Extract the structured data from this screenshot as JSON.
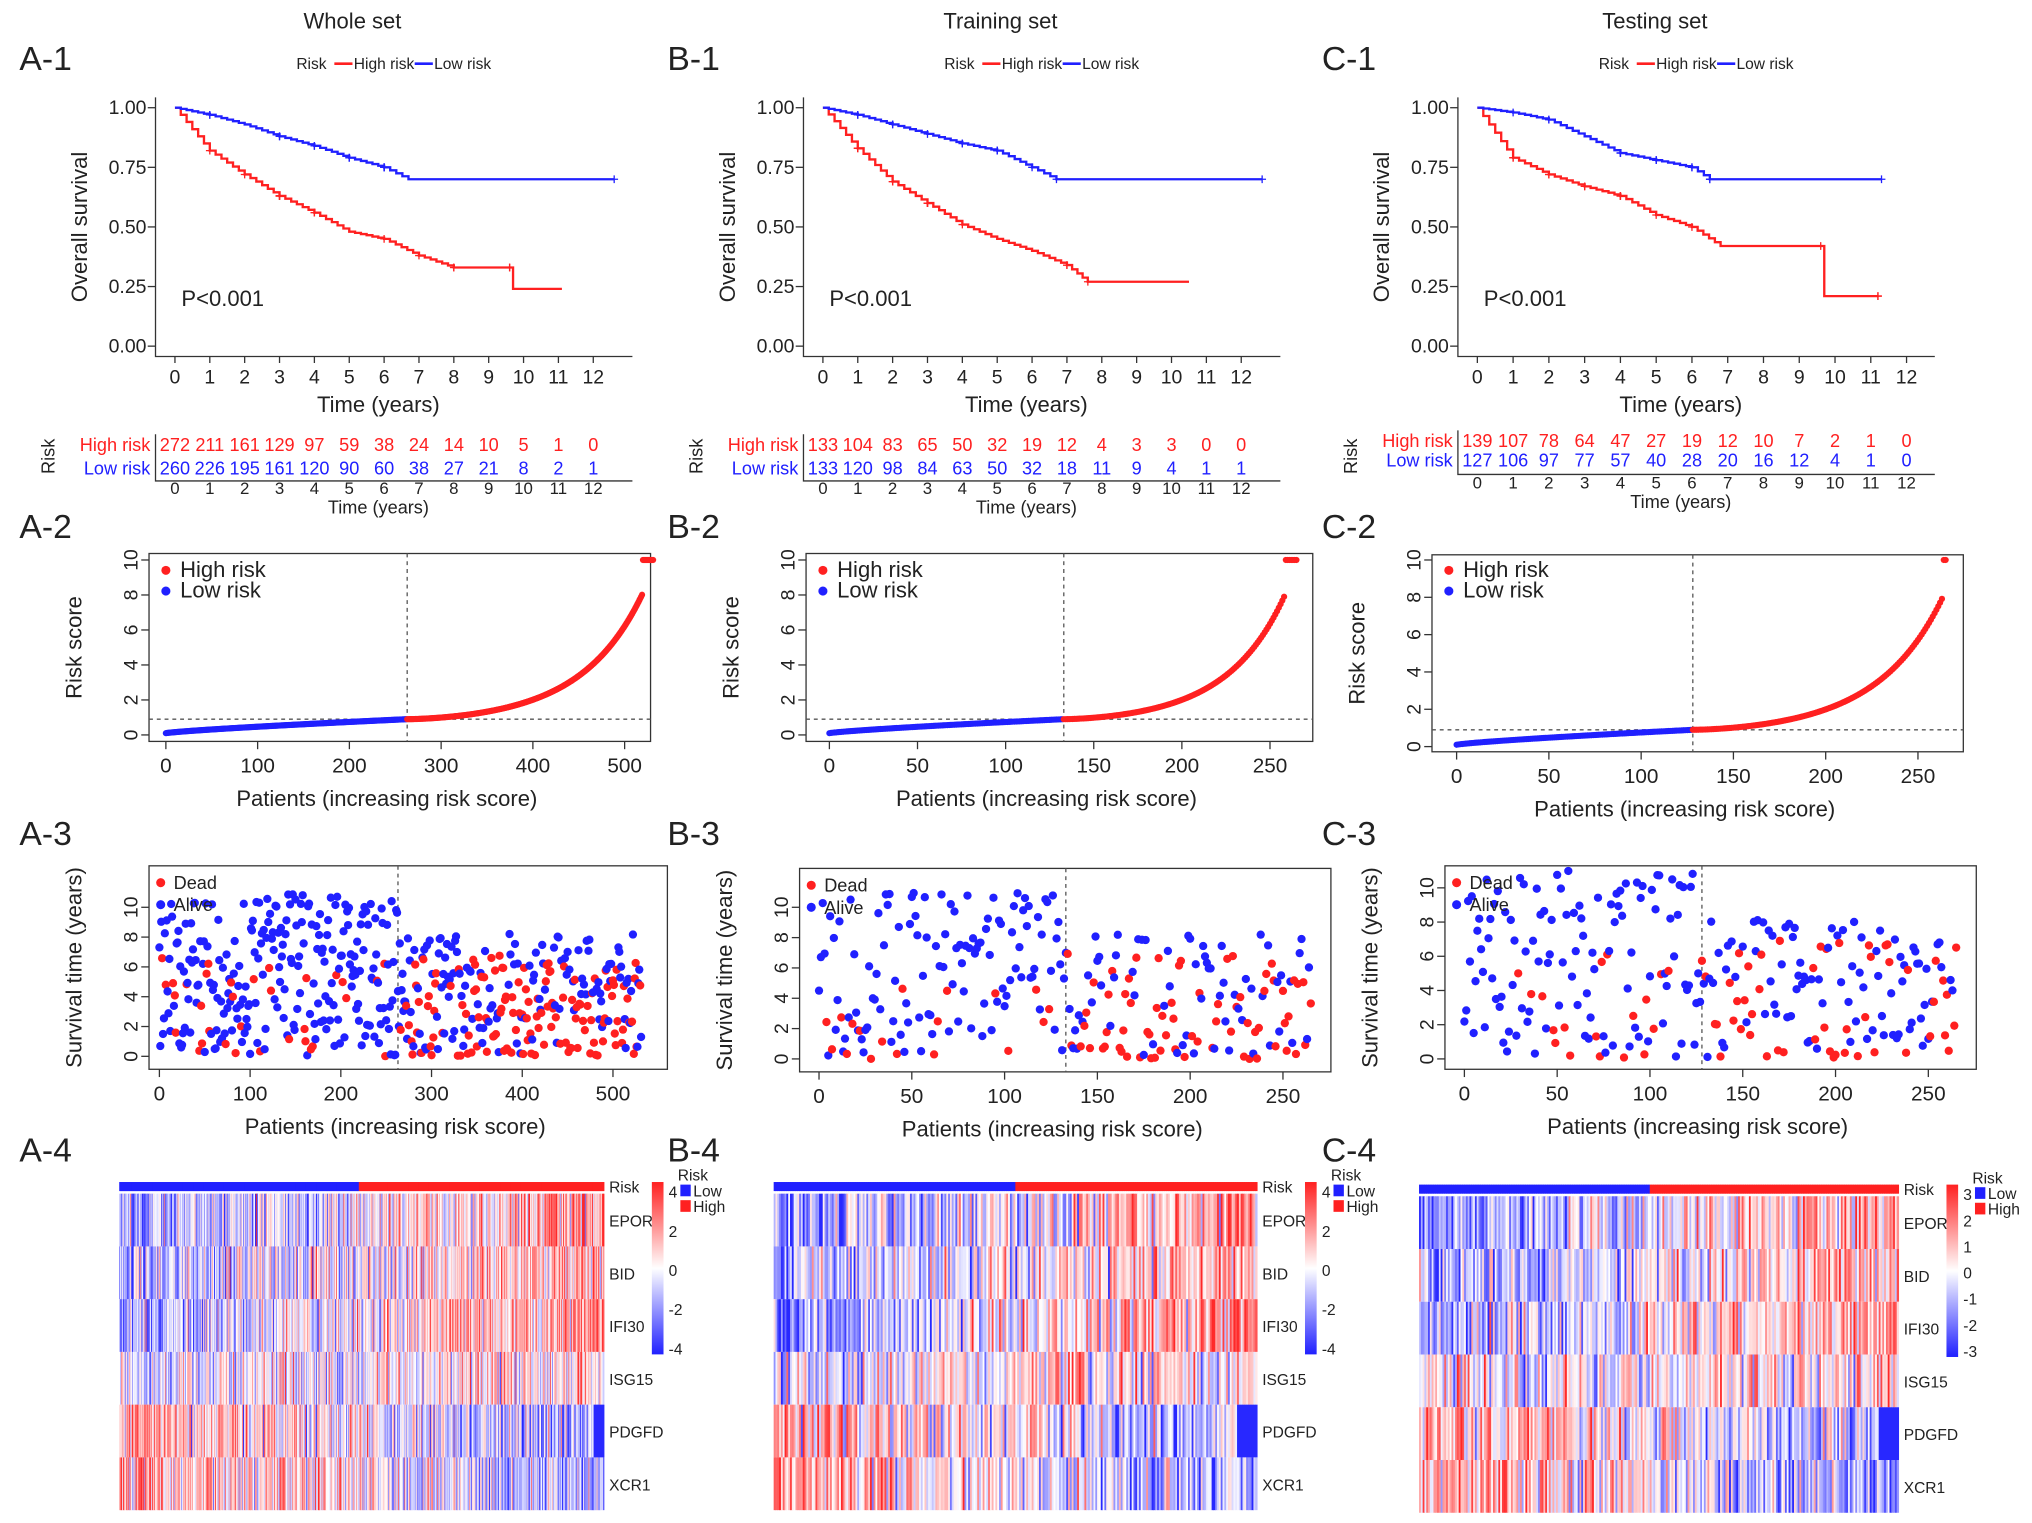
{
  "colors": {
    "high": "#ff2020",
    "low": "#2020ff",
    "axis": "#333333"
  },
  "chart_data": [
    {
      "column_title": "Whole set",
      "panels": [
        "A-1",
        "A-2",
        "A-3",
        "A-4"
      ],
      "km": {
        "type": "line",
        "ylabel": "Overall survival",
        "xlabel": "Time (years)",
        "legend": {
          "title": "Risk",
          "items": [
            "High risk",
            "Low risk"
          ]
        },
        "pvalue": "P<0.001",
        "xticks": [
          "0",
          "1",
          "2",
          "3",
          "4",
          "5",
          "6",
          "7",
          "8",
          "9",
          "10",
          "11",
          "12"
        ],
        "yticks": [
          "0.00",
          "0.25",
          "0.50",
          "0.75",
          "1.00"
        ],
        "high": [
          [
            0,
            1
          ],
          [
            1,
            0.82
          ],
          [
            2,
            0.72
          ],
          [
            3,
            0.63
          ],
          [
            4,
            0.56
          ],
          [
            5,
            0.48
          ],
          [
            6,
            0.45
          ],
          [
            7,
            0.38
          ],
          [
            8,
            0.33
          ],
          [
            9.6,
            0.33
          ],
          [
            9.7,
            0.24
          ],
          [
            11.1,
            0.24
          ]
        ],
        "low": [
          [
            0,
            1
          ],
          [
            1,
            0.97
          ],
          [
            2,
            0.93
          ],
          [
            3,
            0.88
          ],
          [
            4,
            0.84
          ],
          [
            5,
            0.79
          ],
          [
            6,
            0.75
          ],
          [
            6.7,
            0.7
          ],
          [
            12.6,
            0.7
          ]
        ]
      },
      "risk_table": {
        "title": "Risk",
        "xlabel": "Time (years)",
        "rows": [
          {
            "label": "High risk",
            "values": [
              "272",
              "211",
              "161",
              "129",
              "97",
              "59",
              "38",
              "24",
              "14",
              "10",
              "5",
              "1",
              "0"
            ]
          },
          {
            "label": "Low risk",
            "values": [
              "260",
              "226",
              "195",
              "161",
              "120",
              "90",
              "60",
              "38",
              "27",
              "21",
              "8",
              "2",
              "1"
            ]
          }
        ]
      },
      "risk_score": {
        "type": "scatter",
        "ylabel": "Risk score",
        "xlabel": "Patients (increasing risk score)",
        "n": 532,
        "cutoff_index": 263,
        "cutoff_score": 0.9,
        "max_score": 10,
        "capped": 12,
        "legend": [
          "High risk",
          "Low risk"
        ],
        "xticks": [
          "0",
          "100",
          "200",
          "300",
          "400",
          "500"
        ],
        "xtick_values": [
          0,
          100,
          200,
          300,
          400,
          500
        ],
        "yticks": [
          "0",
          "2",
          "4",
          "6",
          "8",
          "10"
        ]
      },
      "survival": {
        "type": "scatter",
        "ylabel": "Survival time (years)",
        "xlabel": "Patients (increasing risk score)",
        "legend": [
          "Dead",
          "Alive"
        ],
        "dead_rate_low": 0.15,
        "dead_rate_high": 0.45,
        "max_time": 11,
        "xticks": [
          "0",
          "100",
          "200",
          "300",
          "400",
          "500"
        ],
        "xtick_values": [
          0,
          100,
          200,
          300,
          400,
          500
        ],
        "yticks": [
          "0",
          "2",
          "4",
          "6",
          "8",
          "10"
        ]
      },
      "heatmap": {
        "type": "heatmap",
        "genes": [
          "EPOR",
          "BID",
          "IFI30",
          "ISG15",
          "PDGFD",
          "XCR1"
        ],
        "trend": [
          1.0,
          0.8,
          1.0,
          0.3,
          -0.9,
          -1.0
        ],
        "risk_row": "Risk",
        "scale": [
          "4",
          "2",
          "0",
          "-2",
          "-4"
        ],
        "legend_title": "Risk",
        "legend_items": [
          "Low",
          "High"
        ]
      }
    },
    {
      "column_title": "Training set",
      "panels": [
        "B-1",
        "B-2",
        "B-3",
        "B-4"
      ],
      "km": {
        "type": "line",
        "ylabel": "Overall survival",
        "xlabel": "Time (years)",
        "legend": {
          "title": "Risk",
          "items": [
            "High risk",
            "Low risk"
          ]
        },
        "pvalue": "P<0.001",
        "xticks": [
          "0",
          "1",
          "2",
          "3",
          "4",
          "5",
          "6",
          "7",
          "8",
          "9",
          "10",
          "11",
          "12"
        ],
        "yticks": [
          "0.00",
          "0.25",
          "0.50",
          "0.75",
          "1.00"
        ],
        "high": [
          [
            0,
            1
          ],
          [
            1,
            0.83
          ],
          [
            2,
            0.69
          ],
          [
            3,
            0.6
          ],
          [
            4,
            0.51
          ],
          [
            5,
            0.45
          ],
          [
            6,
            0.4
          ],
          [
            7,
            0.34
          ],
          [
            7.6,
            0.27
          ],
          [
            10.5,
            0.27
          ]
        ],
        "low": [
          [
            0,
            1
          ],
          [
            1,
            0.97
          ],
          [
            2,
            0.93
          ],
          [
            3,
            0.89
          ],
          [
            4,
            0.85
          ],
          [
            5,
            0.82
          ],
          [
            6,
            0.75
          ],
          [
            6.7,
            0.7
          ],
          [
            12.6,
            0.7
          ]
        ]
      },
      "risk_table": {
        "title": "Risk",
        "xlabel": "Time (years)",
        "rows": [
          {
            "label": "High risk",
            "values": [
              "133",
              "104",
              "83",
              "65",
              "50",
              "32",
              "19",
              "12",
              "4",
              "3",
              "3",
              "0",
              "0"
            ]
          },
          {
            "label": "Low risk",
            "values": [
              "133",
              "120",
              "98",
              "84",
              "63",
              "50",
              "32",
              "18",
              "11",
              "9",
              "4",
              "1",
              "1"
            ]
          }
        ]
      },
      "risk_score": {
        "type": "scatter",
        "ylabel": "Risk score",
        "xlabel": "Patients (increasing risk score)",
        "n": 266,
        "cutoff_index": 133,
        "cutoff_score": 0.9,
        "max_score": 10,
        "capped": 7,
        "legend": [
          "High risk",
          "Low risk"
        ],
        "xticks": [
          "0",
          "50",
          "100",
          "150",
          "200",
          "250"
        ],
        "xtick_values": [
          0,
          50,
          100,
          150,
          200,
          250
        ],
        "yticks": [
          "0",
          "2",
          "4",
          "6",
          "8",
          "10"
        ]
      },
      "survival": {
        "type": "scatter",
        "ylabel": "Survival time (years)",
        "xlabel": "Patients (increasing risk score)",
        "legend": [
          "Dead",
          "Alive"
        ],
        "dead_rate_low": 0.12,
        "dead_rate_high": 0.5,
        "max_time": 11,
        "xticks": [
          "0",
          "50",
          "100",
          "150",
          "200",
          "250"
        ],
        "xtick_values": [
          0,
          50,
          100,
          150,
          200,
          250
        ],
        "yticks": [
          "0",
          "2",
          "4",
          "6",
          "8",
          "10"
        ]
      },
      "heatmap": {
        "type": "heatmap",
        "genes": [
          "EPOR",
          "BID",
          "IFI30",
          "ISG15",
          "PDGFD",
          "XCR1"
        ],
        "trend": [
          1.0,
          0.8,
          1.0,
          0.3,
          -0.9,
          -1.0
        ],
        "risk_row": "Risk",
        "scale": [
          "4",
          "2",
          "0",
          "-2",
          "-4"
        ],
        "legend_title": "Risk",
        "legend_items": [
          "Low",
          "High"
        ]
      }
    },
    {
      "column_title": "Testing set",
      "panels": [
        "C-1",
        "C-2",
        "C-3",
        "C-4"
      ],
      "km": {
        "type": "line",
        "ylabel": "Overall survival",
        "xlabel": "Time (years)",
        "legend": {
          "title": "Risk",
          "items": [
            "High risk",
            "Low risk"
          ]
        },
        "pvalue": "P<0.001",
        "xticks": [
          "0",
          "1",
          "2",
          "3",
          "4",
          "5",
          "6",
          "7",
          "8",
          "9",
          "10",
          "11",
          "12"
        ],
        "yticks": [
          "0.00",
          "0.25",
          "0.50",
          "0.75",
          "1.00"
        ],
        "high": [
          [
            0,
            1
          ],
          [
            1,
            0.79
          ],
          [
            2,
            0.72
          ],
          [
            3,
            0.67
          ],
          [
            4,
            0.63
          ],
          [
            5,
            0.55
          ],
          [
            6,
            0.5
          ],
          [
            6.8,
            0.42
          ],
          [
            9.6,
            0.42
          ],
          [
            9.7,
            0.21
          ],
          [
            11.2,
            0.21
          ]
        ],
        "low": [
          [
            0,
            1
          ],
          [
            1,
            0.98
          ],
          [
            2,
            0.95
          ],
          [
            3,
            0.88
          ],
          [
            4,
            0.81
          ],
          [
            5,
            0.78
          ],
          [
            6,
            0.75
          ],
          [
            6.5,
            0.7
          ],
          [
            11.3,
            0.7
          ]
        ]
      },
      "risk_table": {
        "title": "Risk",
        "xlabel": "Time (years)",
        "rows": [
          {
            "label": "High risk",
            "values": [
              "139",
              "107",
              "78",
              "64",
              "47",
              "27",
              "19",
              "12",
              "10",
              "7",
              "2",
              "1",
              "0"
            ]
          },
          {
            "label": "Low risk",
            "values": [
              "127",
              "106",
              "97",
              "77",
              "57",
              "40",
              "28",
              "20",
              "16",
              "12",
              "4",
              "1",
              "0"
            ]
          }
        ]
      },
      "risk_score": {
        "type": "scatter",
        "ylabel": "Risk score",
        "xlabel": "Patients (increasing risk score)",
        "n": 266,
        "cutoff_index": 128,
        "cutoff_score": 0.9,
        "max_score": 10,
        "capped": 2,
        "legend": [
          "High risk",
          "Low risk"
        ],
        "xticks": [
          "0",
          "50",
          "100",
          "150",
          "200",
          "250"
        ],
        "xtick_values": [
          0,
          50,
          100,
          150,
          200,
          250
        ],
        "yticks": [
          "0",
          "2",
          "4",
          "6",
          "8",
          "10"
        ]
      },
      "survival": {
        "type": "scatter",
        "ylabel": "Survival time (years)",
        "xlabel": "Patients (increasing risk score)",
        "legend": [
          "Dead",
          "Alive"
        ],
        "dead_rate_low": 0.15,
        "dead_rate_high": 0.42,
        "max_time": 11,
        "xticks": [
          "0",
          "50",
          "100",
          "150",
          "200",
          "250"
        ],
        "xtick_values": [
          0,
          50,
          100,
          150,
          200,
          250
        ],
        "yticks": [
          "0",
          "2",
          "4",
          "6",
          "8",
          "10"
        ]
      },
      "heatmap": {
        "type": "heatmap",
        "genes": [
          "EPOR",
          "BID",
          "IFI30",
          "ISG15",
          "PDGFD",
          "XCR1"
        ],
        "trend": [
          1.0,
          0.8,
          1.0,
          0.3,
          -0.9,
          -1.0
        ],
        "risk_row": "Risk",
        "scale": [
          "3",
          "2",
          "1",
          "0",
          "-1",
          "-2",
          "-3"
        ],
        "legend_title": "Risk",
        "legend_items": [
          "Low",
          "High"
        ]
      }
    }
  ]
}
